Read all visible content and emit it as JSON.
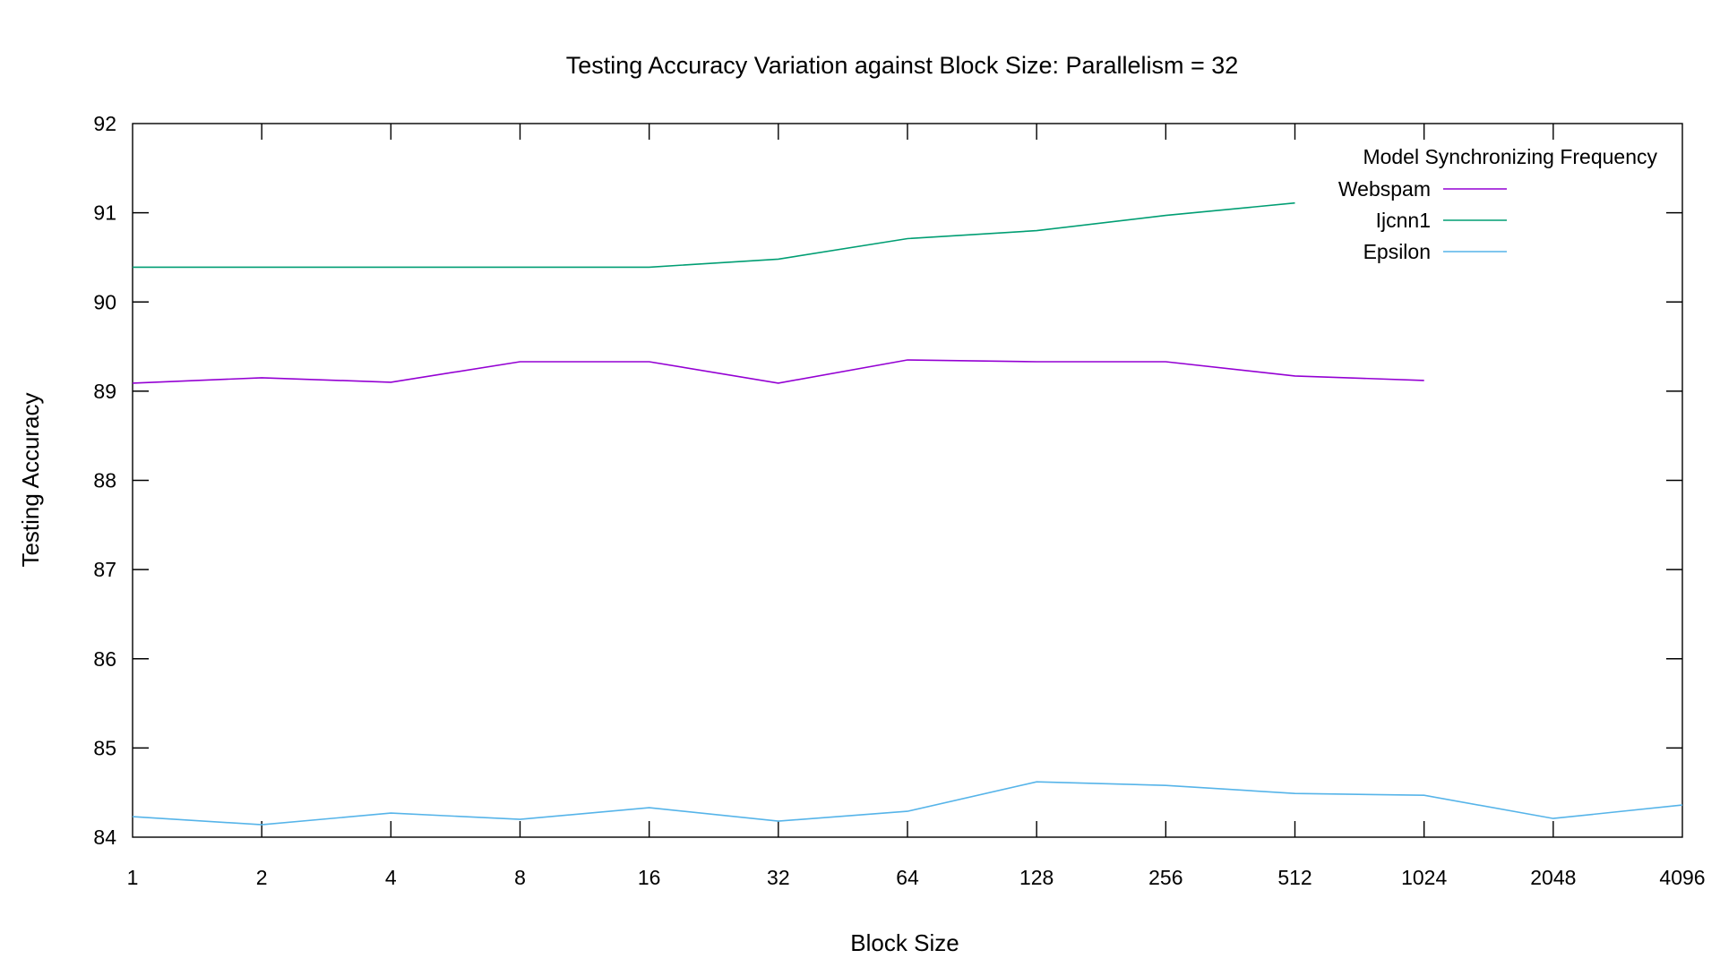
{
  "chart_data": {
    "type": "line",
    "title": "Testing  Accuracy Variation against Block Size: Parallelism = 32",
    "xlabel": "Block Size",
    "ylabel": "Testing Accuracy",
    "x_scale": "log2",
    "categories": [
      "1",
      "2",
      "4",
      "8",
      "16",
      "32",
      "64",
      "128",
      "256",
      "512",
      "1024",
      "2048",
      "4096"
    ],
    "ylim": [
      84,
      92
    ],
    "yticks": [
      "84",
      "85",
      "86",
      "87",
      "88",
      "89",
      "90",
      "91",
      "92"
    ],
    "grid": false,
    "legend": {
      "title": "Model Synchronizing Frequency",
      "placement": "top-right"
    },
    "series": [
      {
        "name": "Webspam",
        "color": "#9400d3",
        "x": [
          1,
          2,
          4,
          8,
          16,
          32,
          64,
          128,
          256,
          512,
          1024
        ],
        "values": [
          89.09,
          89.15,
          89.1,
          89.33,
          89.33,
          89.09,
          89.35,
          89.33,
          89.33,
          89.17,
          89.12
        ]
      },
      {
        "name": "Ijcnn1",
        "color": "#009e73",
        "x": [
          1,
          2,
          4,
          8,
          16,
          32,
          64,
          128,
          256,
          512
        ],
        "values": [
          90.39,
          90.39,
          90.39,
          90.39,
          90.39,
          90.48,
          90.71,
          90.8,
          90.97,
          91.11
        ]
      },
      {
        "name": "Epsilon",
        "color": "#56b4e9",
        "x": [
          1,
          2,
          4,
          8,
          16,
          32,
          64,
          128,
          256,
          512,
          1024,
          2048,
          4096
        ],
        "values": [
          84.23,
          84.14,
          84.27,
          84.2,
          84.33,
          84.18,
          84.29,
          84.62,
          84.58,
          84.49,
          84.47,
          84.21,
          84.36
        ]
      }
    ]
  }
}
